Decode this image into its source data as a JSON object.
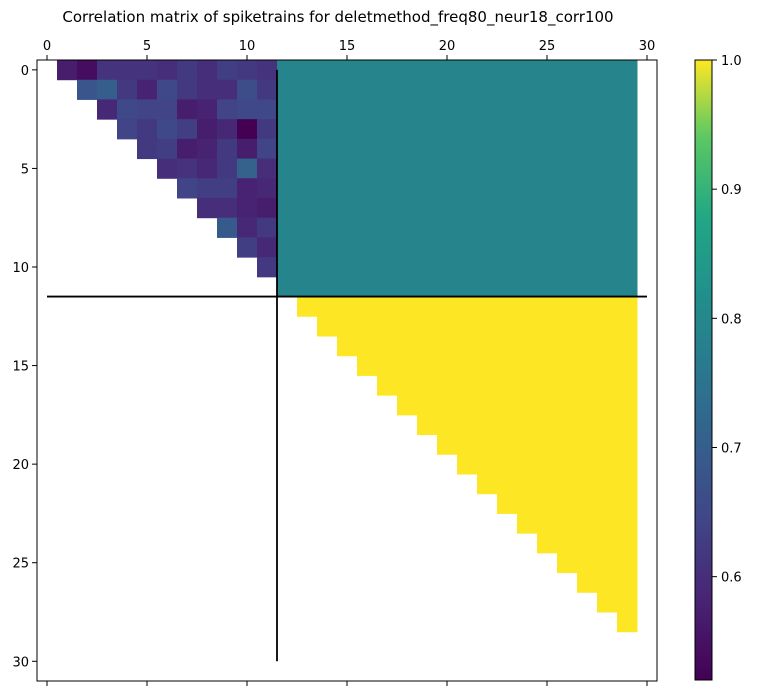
{
  "chart_data": {
    "type": "heatmap",
    "title": "Correlation matrix of spiketrains for deletmethod_freq80_neur18_corr100",
    "xlabel": "",
    "ylabel": "",
    "size": 30,
    "xlim": [
      -0.5,
      30.5
    ],
    "ylim": [
      31,
      -0.5
    ],
    "x_ticks": [
      0,
      5,
      10,
      15,
      20,
      25,
      30
    ],
    "y_ticks": [
      0,
      5,
      10,
      15,
      20,
      25,
      30
    ],
    "x_tick_position": "top",
    "colormap": "viridis",
    "color_range": [
      0.52,
      1.0
    ],
    "colorbar_ticks": [
      0.6,
      0.7,
      0.8,
      0.9,
      1.0
    ],
    "colorbar_tick_labels": [
      "0.6",
      "0.7",
      "0.8",
      "0.9",
      "1.0"
    ],
    "grid": false,
    "divider_lines": {
      "horizontal_y": 11.5,
      "vertical_x": 11.5,
      "horizontal_x_range": [
        0,
        30
      ],
      "vertical_y_range": [
        0,
        30
      ]
    },
    "upper_left_triangle_rows": [
      [
        0.57,
        0.54,
        0.61,
        0.61,
        0.61,
        0.6,
        0.62,
        0.6,
        0.63,
        0.62,
        0.61
      ],
      [
        0.68,
        0.7,
        0.62,
        0.58,
        0.65,
        0.62,
        0.6,
        0.6,
        0.66,
        0.62
      ],
      [
        0.59,
        0.65,
        0.64,
        0.64,
        0.57,
        0.58,
        0.64,
        0.65,
        0.65
      ],
      [
        0.64,
        0.62,
        0.65,
        0.63,
        0.57,
        0.59,
        0.52,
        0.62
      ],
      [
        0.62,
        0.63,
        0.57,
        0.58,
        0.62,
        0.57,
        0.64
      ],
      [
        0.6,
        0.61,
        0.59,
        0.62,
        0.71,
        0.6
      ],
      [
        0.64,
        0.63,
        0.63,
        0.58,
        0.59
      ],
      [
        0.6,
        0.6,
        0.58,
        0.57
      ],
      [
        0.69,
        0.59,
        0.62
      ],
      [
        0.63,
        0.59
      ],
      [
        0.62
      ]
    ],
    "upper_right_block_value": 0.79,
    "upper_right_block_rows": [
      0,
      11
    ],
    "upper_right_block_cols": [
      12,
      29
    ],
    "lower_triangle_value": 1.0,
    "lower_triangle_rows": [
      12,
      28
    ],
    "lower_triangle_last_col": 29
  }
}
